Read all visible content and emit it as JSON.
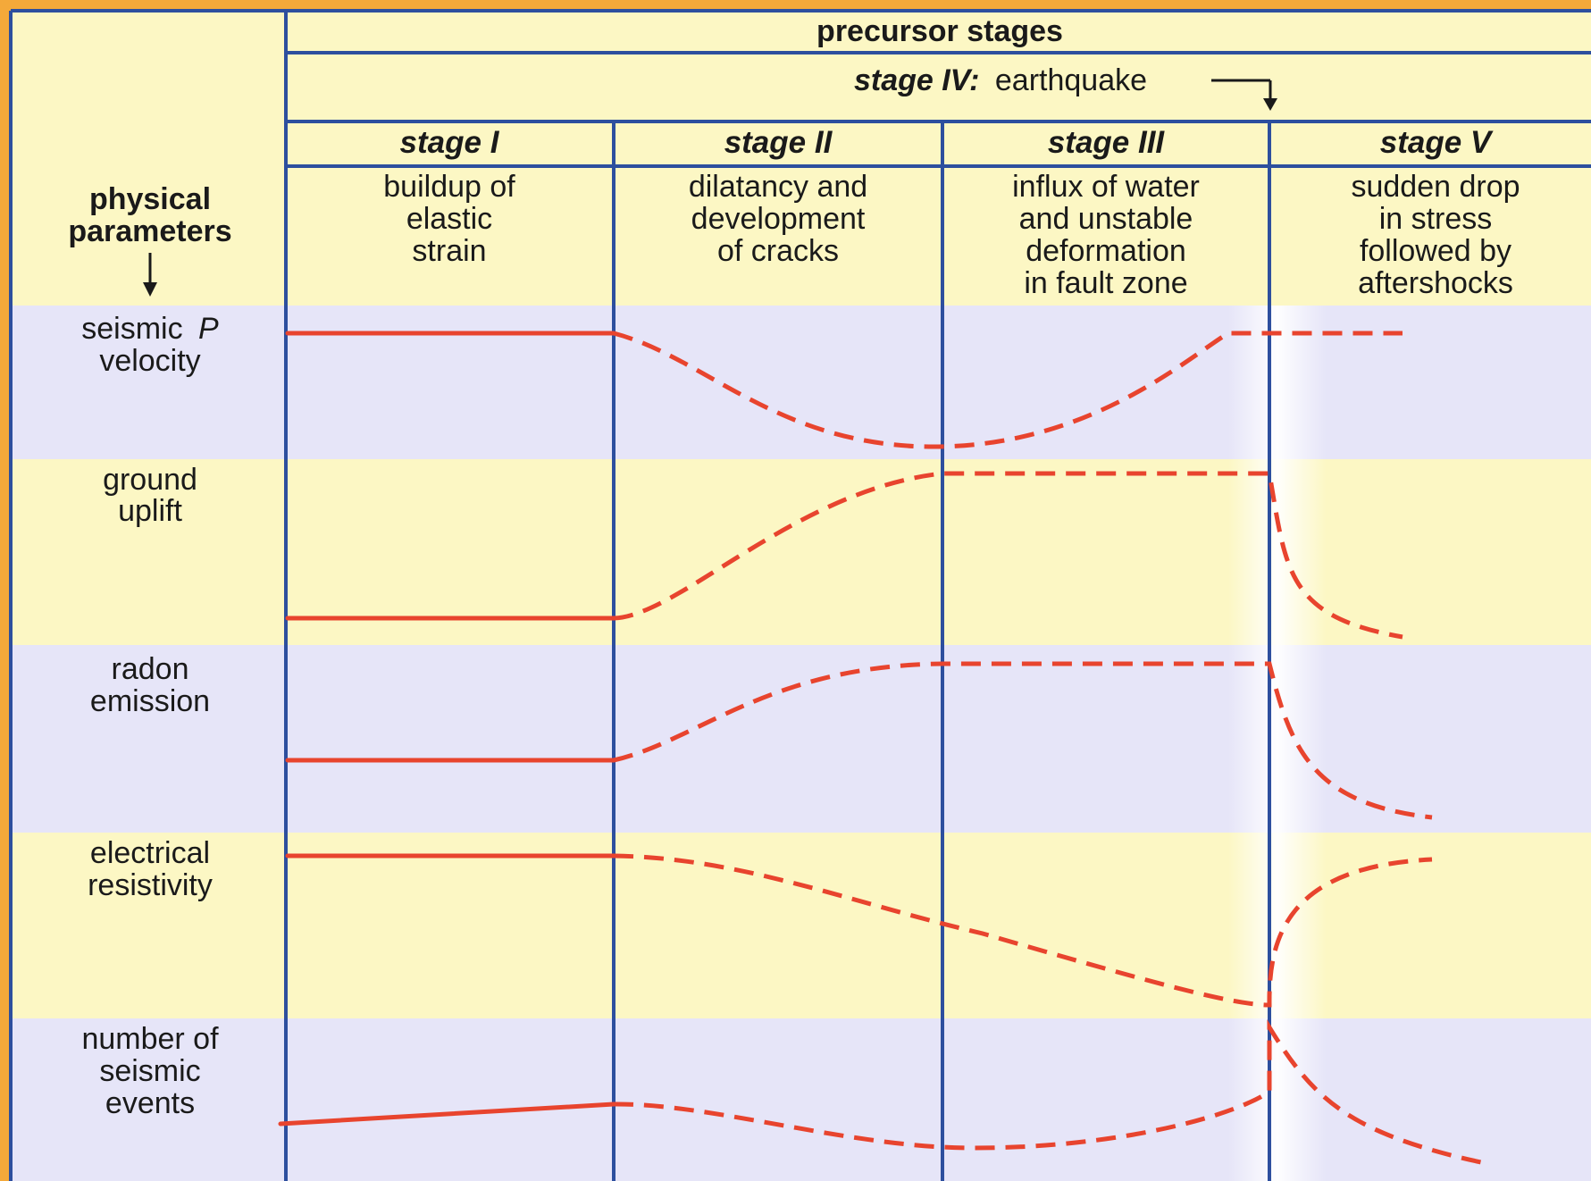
{
  "header": {
    "precursor_label": "precursor stages",
    "stage_iv_prefix": "stage IV:",
    "stage_iv_name": "earthquake",
    "params_label_line1": "physical",
    "params_label_line2": "parameters"
  },
  "stages": [
    {
      "name": "stage I",
      "desc": [
        "buildup of",
        "elastic",
        "strain"
      ]
    },
    {
      "name": "stage II",
      "desc": [
        "dilatancy and",
        "development",
        "of cracks"
      ]
    },
    {
      "name": "stage III",
      "desc": [
        "influx of water",
        "and unstable",
        "deformation",
        "in fault zone"
      ]
    },
    {
      "name": "stage V",
      "desc": [
        "sudden drop",
        "in stress",
        "followed by",
        "aftershocks"
      ]
    }
  ],
  "parameters": [
    {
      "lines": [
        "seismic",
        "velocity"
      ],
      "italic_suffix": "P"
    },
    {
      "lines": [
        "ground",
        "uplift"
      ]
    },
    {
      "lines": [
        "radon",
        "emission"
      ]
    },
    {
      "lines": [
        "electrical",
        "resistivity"
      ]
    },
    {
      "lines": [
        "number of",
        "seismic",
        "events"
      ]
    }
  ],
  "colors": {
    "background_frame": "#f4a93a",
    "yellow_band": "#fcf7c4",
    "lavender_band": "#e6e5f8",
    "grid_line": "#2d4f9e",
    "curve": "#e8442e"
  }
}
